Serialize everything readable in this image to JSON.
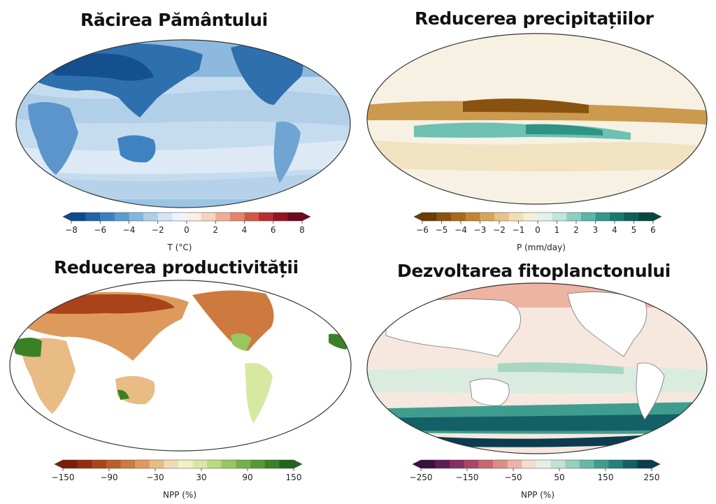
{
  "panels": [
    {
      "id": "cooling",
      "title": "Răcirea Pământului",
      "colorbar": {
        "ticks": [
          "−8",
          "−6",
          "−4",
          "−2",
          "0",
          "2",
          "4",
          "6",
          "8"
        ],
        "label": "T (°C)",
        "colors": [
          "#0b4a8c",
          "#1f64a8",
          "#3a80c0",
          "#5e9bd0",
          "#86b6de",
          "#aecfe9",
          "#d3e5f3",
          "#eef4fa",
          "#fbeee6",
          "#f6d2bf",
          "#eeae93",
          "#e2856a",
          "#cf5846",
          "#b72d33",
          "#931424",
          "#6d0a1c"
        ]
      }
    },
    {
      "id": "precip",
      "title": "Reducerea precipitațiilor",
      "colorbar": {
        "ticks": [
          "−6",
          "−5",
          "−4",
          "−3",
          "−2",
          "−1",
          "0",
          "1",
          "2",
          "3",
          "4",
          "5",
          "6"
        ],
        "label": "P (mm/day)",
        "colors": [
          "#6b3c05",
          "#8a5210",
          "#a7691c",
          "#c18634",
          "#d6a55a",
          "#e6c387",
          "#f1ddb3",
          "#f8efd9",
          "#e2f1ee",
          "#bfe4dc",
          "#8dcfc1",
          "#5cb5a5",
          "#33978a",
          "#1a7a6f",
          "#0c5e56",
          "#064740"
        ]
      }
    },
    {
      "id": "npp_land",
      "title": "Reducerea productivității",
      "colorbar": {
        "ticks": [
          "−150",
          "−90",
          "−30",
          "30",
          "90",
          "150"
        ],
        "label": "NPP (%)",
        "colors": [
          "#7a1e0a",
          "#932d0f",
          "#a9431a",
          "#bd5d28",
          "#ce7a3e",
          "#dd9a5c",
          "#e9bb85",
          "#f3d9b3",
          "#eef2c7",
          "#d7e8a3",
          "#b9d97f",
          "#98c65f",
          "#76b145",
          "#569a33",
          "#3a8126",
          "#1f661a"
        ]
      }
    },
    {
      "id": "phyto",
      "title": "Dezvoltarea fitoplanctonului",
      "colorbar": {
        "ticks": [
          "−250",
          "−150",
          "−50",
          "50",
          "150",
          "250"
        ],
        "label": "NPP (%)",
        "colors": [
          "#3a1040",
          "#5e1d55",
          "#852e62",
          "#a9456a",
          "#c76673",
          "#dd8c86",
          "#ecb4a6",
          "#f6dccf",
          "#e6f0e6",
          "#c3e2d2",
          "#96cfbb",
          "#66b8a4",
          "#3f9d8f",
          "#23807c",
          "#136067",
          "#0b3c4f"
        ]
      }
    }
  ]
}
